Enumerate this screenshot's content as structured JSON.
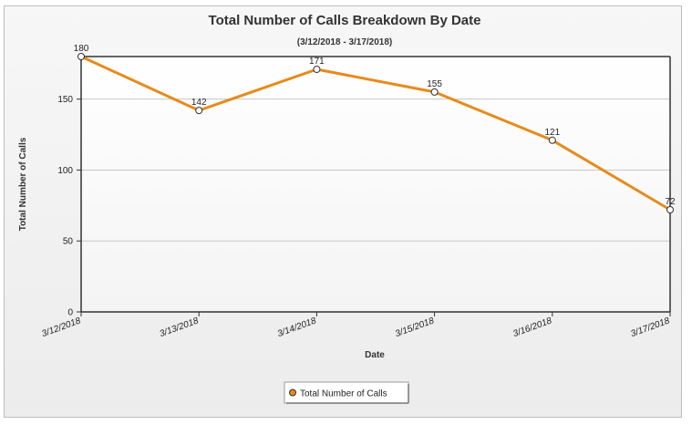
{
  "chart_data": {
    "type": "line",
    "title": "Total Number of Calls Breakdown By Date",
    "subtitle": "(3/12/2018 - 3/17/2018)",
    "xlabel": "Date",
    "ylabel": "Total Number of Calls",
    "categories": [
      "3/12/2018",
      "3/13/2018",
      "3/14/2018",
      "3/15/2018",
      "3/16/2018",
      "3/17/2018"
    ],
    "series": [
      {
        "name": "Total Number of Calls",
        "values": [
          180,
          142,
          171,
          155,
          121,
          72
        ],
        "color": "#e88a1a"
      }
    ],
    "ylim": [
      0,
      180
    ],
    "yticks": [
      0,
      50,
      100,
      150
    ],
    "grid": true,
    "legend": "bottom-center"
  }
}
